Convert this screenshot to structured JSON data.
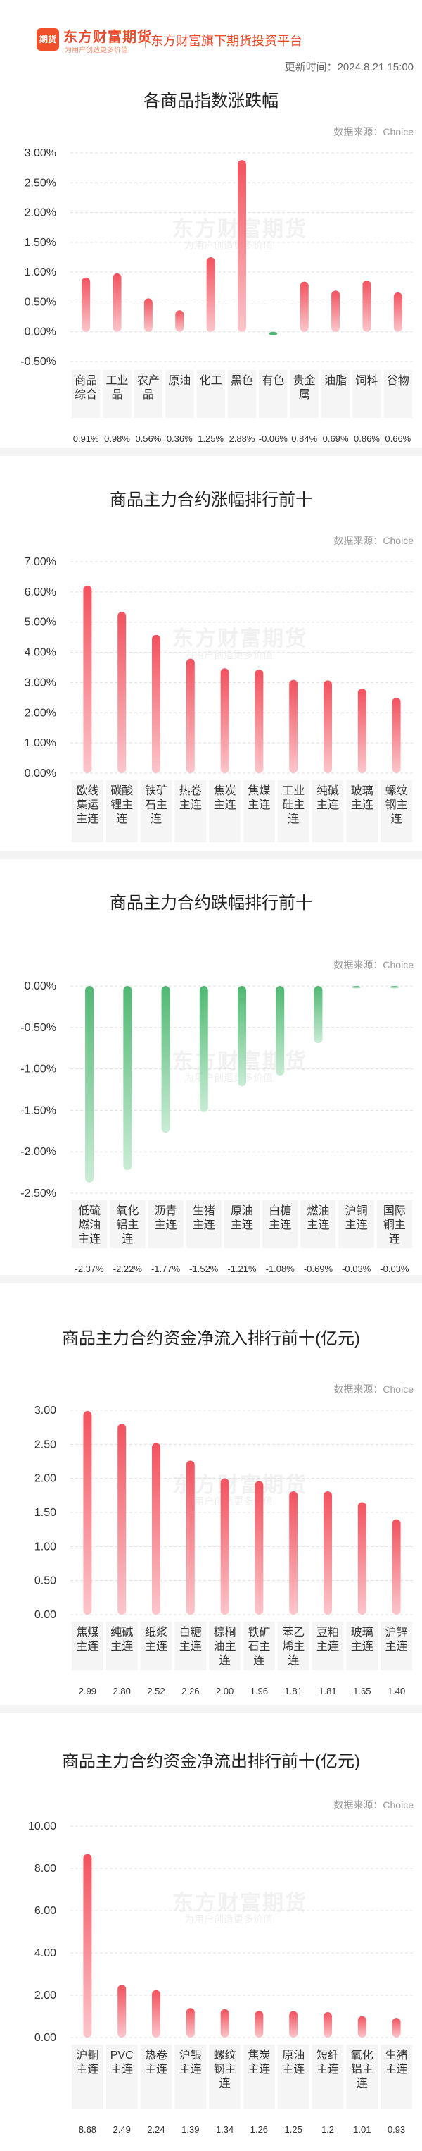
{
  "brand": {
    "logo_icon": "期货",
    "name": "东方财富期货",
    "slogan": "为用户创造更多价值",
    "platform": "东方财富旗下期货投资平台"
  },
  "updated": "更新时间：2024.8.21 15:00",
  "source": "数据来源：Choice",
  "watermark": {
    "main": "东方财富期货",
    "sub": "为用户创造更多价值"
  },
  "colors": {
    "up": "#f2525e",
    "down": "#4fb872",
    "axis": "#999999",
    "grid": "#e0e0e0"
  },
  "chart_data": [
    {
      "type": "bar",
      "title": "各商品指数涨跌幅",
      "categories": [
        "商品综合",
        "工业品",
        "农产品",
        "原油",
        "化工",
        "黑色",
        "有色",
        "贵金属",
        "油脂",
        "饲料",
        "谷物"
      ],
      "values": [
        0.91,
        0.98,
        0.56,
        0.36,
        1.25,
        2.88,
        -0.06,
        0.84,
        0.69,
        0.86,
        0.66
      ],
      "value_labels": [
        "0.91%",
        "0.98%",
        "0.56%",
        "0.36%",
        "1.25%",
        "2.88%",
        "-0.06%",
        "0.84%",
        "0.69%",
        "0.86%",
        "0.66%"
      ],
      "yticks": [
        "3.00%",
        "2.50%",
        "2.00%",
        "1.50%",
        "1.00%",
        "0.50%",
        "0.00%",
        "-0.50%"
      ],
      "ylim": [
        -0.5,
        3.0
      ],
      "unit": "%"
    },
    {
      "type": "bar",
      "title": "商品主力合约涨幅排行前十",
      "categories": [
        "欧线集运主连",
        "碳酸锂主连",
        "铁矿石主连",
        "热卷主连",
        "焦炭主连",
        "焦煤主连",
        "工业硅主连",
        "纯碱主连",
        "玻璃主连",
        "螺纹钢主连"
      ],
      "values": [
        6.21,
        5.34,
        4.58,
        3.79,
        3.47,
        3.43,
        3.09,
        3.07,
        2.8,
        2.5
      ],
      "value_labels": [
        "6.21%",
        "5.34%",
        "4.58%",
        "3.79%",
        "3.47%",
        "3.43%",
        "3.09%",
        "3.07%",
        "2.80%",
        "2.50%"
      ],
      "yticks": [
        "7.00%",
        "6.00%",
        "5.00%",
        "4.00%",
        "3.00%",
        "2.00%",
        "1.00%",
        "0.00%"
      ],
      "ylim": [
        0,
        7.0
      ],
      "unit": "%"
    },
    {
      "type": "bar",
      "title": "商品主力合约跌幅排行前十",
      "categories": [
        "低硫燃油主连",
        "氧化铝主连",
        "沥青主连",
        "生猪主连",
        "原油主连",
        "白糖主连",
        "燃油主连",
        "沪铜主连",
        "国际铜主连"
      ],
      "values": [
        -2.37,
        -2.22,
        -1.77,
        -1.52,
        -1.21,
        -1.08,
        -0.69,
        -0.03,
        -0.03
      ],
      "value_labels": [
        "-2.37%",
        "-2.22%",
        "-1.77%",
        "-1.52%",
        "-1.21%",
        "-1.08%",
        "-0.69%",
        "-0.03%",
        "-0.03%"
      ],
      "yticks": [
        "0.00%",
        "-0.50%",
        "-1.00%",
        "-1.50%",
        "-2.00%",
        "-2.50%"
      ],
      "ylim": [
        -2.5,
        0
      ],
      "unit": "%"
    },
    {
      "type": "bar",
      "title": "商品主力合约资金净流入排行前十(亿元)",
      "categories": [
        "焦煤主连",
        "纯碱主连",
        "纸浆主连",
        "白糖主连",
        "棕榈油主连",
        "铁矿石主连",
        "苯乙烯主连",
        "豆粕主连",
        "玻璃主连",
        "沪锌主连"
      ],
      "values": [
        2.99,
        2.8,
        2.52,
        2.26,
        2.0,
        1.96,
        1.81,
        1.81,
        1.65,
        1.4
      ],
      "value_labels": [
        "2.99",
        "2.80",
        "2.52",
        "2.26",
        "2.00",
        "1.96",
        "1.81",
        "1.81",
        "1.65",
        "1.40"
      ],
      "yticks": [
        "3.00",
        "2.50",
        "2.00",
        "1.50",
        "1.00",
        "0.50",
        "0.00"
      ],
      "ylim": [
        0,
        3.0
      ],
      "unit": "亿元"
    },
    {
      "type": "bar",
      "title": "商品主力合约资金净流出排行前十(亿元)",
      "categories": [
        "沪铜主连",
        "PVC主连",
        "热卷主连",
        "沪银主连",
        "螺纹钢主连",
        "焦炭主连",
        "原油主连",
        "短纤主连",
        "氧化铝主连",
        "生猪主连"
      ],
      "values": [
        8.68,
        2.49,
        2.24,
        1.39,
        1.34,
        1.26,
        1.25,
        1.2,
        1.01,
        0.93
      ],
      "value_labels": [
        "8.68",
        "2.49",
        "2.24",
        "1.39",
        "1.34",
        "1.26",
        "1.25",
        "1.2",
        "1.01",
        "0.93"
      ],
      "yticks": [
        "10.00",
        "8.00",
        "6.00",
        "4.00",
        "2.00",
        "0.00"
      ],
      "ylim": [
        0,
        10.0
      ],
      "unit": "亿元"
    }
  ]
}
